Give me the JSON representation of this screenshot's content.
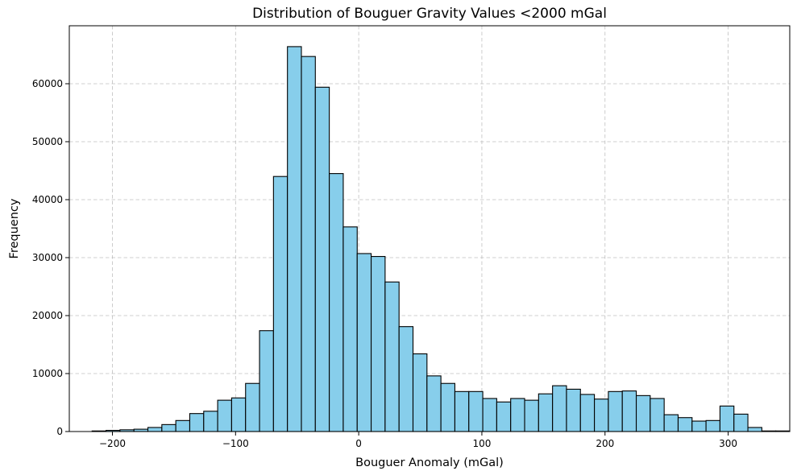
{
  "chart_data": {
    "type": "bar",
    "title": "Distribution of Bouguer Gravity Values <2000 mGal",
    "xlabel": "Bouguer Anomaly (mGal)",
    "ylabel": "Frequency",
    "xlim": [
      -235,
      350
    ],
    "ylim": [
      0,
      70000
    ],
    "grid": true,
    "bar_color": "#87ceeb",
    "edge_color": "#000000",
    "xticks": [
      -200,
      -100,
      0,
      100,
      200,
      300
    ],
    "xtick_labels": [
      "−200",
      "−100",
      "0",
      "100",
      "200",
      "300"
    ],
    "yticks": [
      0,
      10000,
      20000,
      30000,
      40000,
      50000,
      60000
    ],
    "ytick_labels": [
      "0",
      "10000",
      "20000",
      "30000",
      "40000",
      "50000",
      "60000"
    ],
    "bins": {
      "start": -216.5,
      "width": 11.33,
      "counts": [
        100,
        200,
        300,
        400,
        700,
        1200,
        1900,
        3100,
        3500,
        5400,
        5800,
        8300,
        17400,
        44000,
        66400,
        64700,
        59400,
        44500,
        35300,
        30700,
        30200,
        25800,
        18100,
        13400,
        9600,
        8300,
        6900,
        6900,
        5700,
        5100,
        5700,
        5400,
        6500,
        7900,
        7300,
        6400,
        5600,
        6900,
        7000,
        6200,
        5700,
        2900,
        2400,
        1800,
        1900,
        4400,
        3000,
        700,
        100,
        100
      ]
    }
  }
}
